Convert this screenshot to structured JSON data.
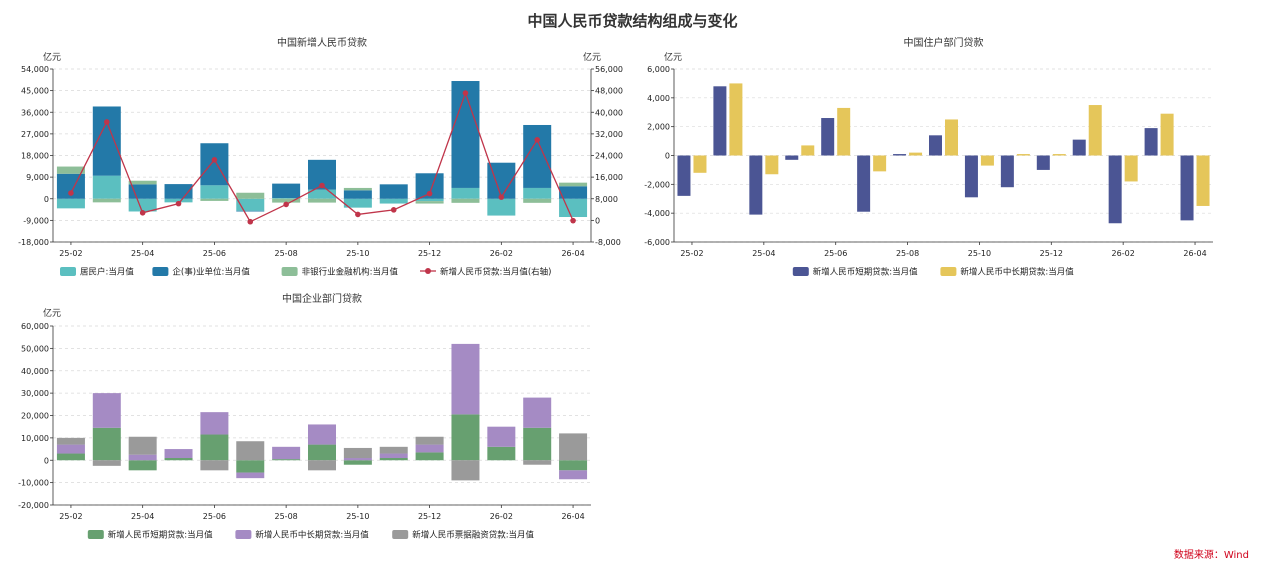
{
  "page": {
    "title": "中国人民币贷款结构组成与变化",
    "source": "数据来源：Wind"
  },
  "chart_data": [
    {
      "type": "bar",
      "title": "中国新增人民币贷款",
      "unit_left": "亿元",
      "unit_right": "亿元",
      "stacked": true,
      "x": [
        "25-02",
        "25-03",
        "25-04",
        "25-05",
        "25-06",
        "25-07",
        "25-08",
        "25-09",
        "25-10",
        "25-11",
        "25-12",
        "26-01",
        "26-02",
        "26-03",
        "26-04"
      ],
      "x_tick_labels": [
        "25-02",
        "25-04",
        "25-06",
        "25-08",
        "25-10",
        "25-12",
        "26-02",
        "26-04"
      ],
      "y_ticks": [
        -18000,
        -9000,
        0,
        9000,
        18000,
        27000,
        36000,
        45000,
        54000
      ],
      "y_tick_labels": [
        "-18,000",
        "-9,000",
        "0",
        "9,000",
        "18,000",
        "27,000",
        "36,000",
        "45,000",
        "54,000"
      ],
      "y2_ticks": [
        -8000,
        0,
        8000,
        16000,
        24000,
        32000,
        40000,
        48000,
        56000
      ],
      "y2_tick_labels": [
        "-8,000",
        "0",
        "8,000",
        "16,000",
        "24,000",
        "32,000",
        "40,000",
        "48,000",
        "56,000"
      ],
      "ylim": [
        -18000,
        54000
      ],
      "y2lim": [
        -8000,
        56000
      ],
      "series": [
        {
          "name": "居民户:当月值",
          "kind": "bar",
          "color": "#5bbfc0",
          "values": [
            -4000,
            9600,
            -5300,
            -1500,
            5600,
            -5000,
            300,
            3800,
            -3700,
            -2000,
            -1000,
            4500,
            -7000,
            4500,
            -7600
          ]
        },
        {
          "name": "企(事)业单位:当月值",
          "kind": "bar",
          "color": "#2379a8",
          "values": [
            10400,
            28800,
            6000,
            6100,
            17500,
            -300,
            6000,
            12400,
            3500,
            6000,
            10600,
            44500,
            15000,
            26200,
            5200
          ]
        },
        {
          "name": "非银行业金融机构:当月值",
          "kind": "bar",
          "color": "#8dbe98",
          "values": [
            3000,
            -1500,
            1500,
            0,
            -900,
            2500,
            -1600,
            -1600,
            1000,
            0,
            -1000,
            -1700,
            0,
            -1700,
            1500
          ]
        },
        {
          "name": "新增人民币贷款:当月值(右轴)",
          "kind": "line",
          "color": "#c0354a",
          "axis": "right",
          "values": [
            10100,
            36400,
            2800,
            6200,
            22400,
            -500,
            5900,
            12900,
            2200,
            3900,
            9900,
            47100,
            8600,
            29800,
            -100
          ]
        }
      ]
    },
    {
      "type": "bar",
      "title": "中国住户部门贷款",
      "unit_left": "亿元",
      "x": [
        "25-02",
        "25-03",
        "25-04",
        "25-05",
        "25-06",
        "25-07",
        "25-08",
        "25-09",
        "25-10",
        "25-11",
        "25-12",
        "26-01",
        "26-02",
        "26-03",
        "26-04"
      ],
      "x_tick_labels": [
        "25-02",
        "25-04",
        "25-06",
        "25-08",
        "25-10",
        "25-12",
        "26-02",
        "26-04"
      ],
      "y_ticks": [
        -6000,
        -4000,
        -2000,
        0,
        2000,
        4000,
        6000
      ],
      "y_tick_labels": [
        "-6,000",
        "-4,000",
        "-2,000",
        "0",
        "2,000",
        "4,000",
        "6,000"
      ],
      "ylim": [
        -6000,
        6000
      ],
      "series": [
        {
          "name": "新增人民币短期贷款:当月值",
          "color": "#4b5594",
          "values": [
            -2800,
            4800,
            -4100,
            -300,
            2600,
            -3900,
            100,
            1400,
            -2900,
            -2200,
            -1000,
            1100,
            -4700,
            1900,
            -4500
          ]
        },
        {
          "name": "新增人民币中长期贷款:当月值",
          "color": "#e5c65a",
          "values": [
            -1200,
            5000,
            -1300,
            700,
            3300,
            -1100,
            200,
            2500,
            -700,
            100,
            100,
            3500,
            -1800,
            2900,
            -3500
          ]
        }
      ]
    },
    {
      "type": "bar",
      "title": "中国企业部门贷款",
      "unit_left": "亿元",
      "stacked": true,
      "x": [
        "25-02",
        "25-03",
        "25-04",
        "25-05",
        "25-06",
        "25-07",
        "25-08",
        "25-09",
        "25-10",
        "25-11",
        "25-12",
        "26-01",
        "26-02",
        "26-03",
        "26-04"
      ],
      "x_tick_labels": [
        "25-02",
        "25-04",
        "25-06",
        "25-08",
        "25-10",
        "25-12",
        "26-02",
        "26-04"
      ],
      "y_ticks": [
        -20000,
        -10000,
        0,
        10000,
        20000,
        30000,
        40000,
        50000,
        60000
      ],
      "y_tick_labels": [
        "-20,000",
        "-10,000",
        "0",
        "10,000",
        "20,000",
        "30,000",
        "40,000",
        "50,000",
        "60,000"
      ],
      "ylim": [
        -20000,
        60000
      ],
      "series": [
        {
          "name": "新增人民币短期贷款:当月值",
          "color": "#67a070",
          "values": [
            3000,
            14500,
            -4500,
            1000,
            11500,
            -5500,
            500,
            7000,
            -2000,
            1000,
            3500,
            20500,
            6000,
            14500,
            -4500
          ]
        },
        {
          "name": "新增人民币中长期贷款:当月值",
          "color": "#a58bc4",
          "values": [
            4000,
            15500,
            2500,
            4000,
            10000,
            -2500,
            5500,
            9000,
            1000,
            2000,
            3500,
            31500,
            9000,
            13500,
            -4000
          ]
        },
        {
          "name": "新增人民币票据融资贷款:当月值",
          "color": "#9a9a9a",
          "values": [
            3000,
            -2500,
            8000,
            0,
            -4500,
            8500,
            0,
            -4500,
            4500,
            3000,
            3500,
            -9000,
            0,
            -2000,
            12000
          ]
        }
      ]
    }
  ]
}
